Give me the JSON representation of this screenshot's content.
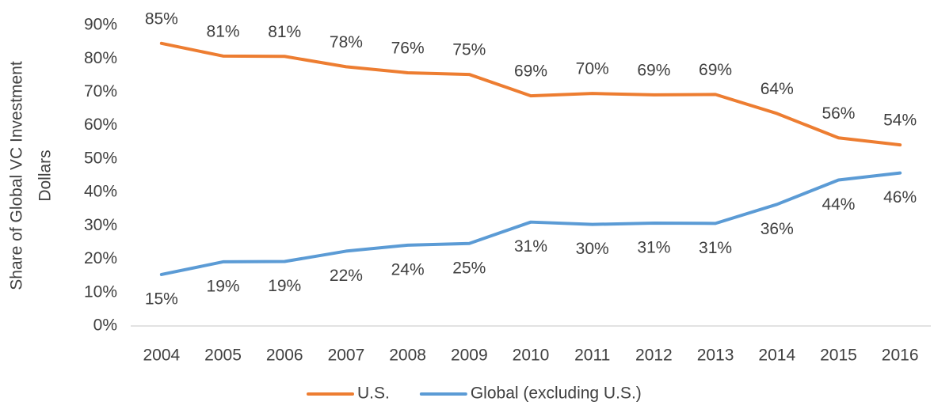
{
  "chart_data": {
    "type": "line",
    "ylabel": [
      "Share of Global VC Investment",
      "Dollars"
    ],
    "categories": [
      "2004",
      "2005",
      "2006",
      "2007",
      "2008",
      "2009",
      "2010",
      "2011",
      "2012",
      "2013",
      "2014",
      "2015",
      "2016"
    ],
    "series": [
      {
        "name": "U.S.",
        "color": "#ed7d31",
        "values": [
          84.6,
          80.8,
          80.7,
          77.6,
          75.8,
          75.3,
          68.9,
          69.6,
          69.2,
          69.3,
          63.6,
          56.3,
          54.2
        ],
        "value_labels": [
          "85%",
          "81%",
          "81%",
          "78%",
          "76%",
          "75%",
          "69%",
          "70%",
          "69%",
          "69%",
          "64%",
          "56%",
          "54%"
        ]
      },
      {
        "name": "Global (excluding U.S.)",
        "color": "#5b9bd5",
        "values": [
          15.4,
          19.2,
          19.3,
          22.4,
          24.2,
          24.7,
          31.1,
          30.4,
          30.8,
          30.7,
          36.4,
          43.7,
          45.8
        ],
        "value_labels": [
          "15%",
          "19%",
          "19%",
          "22%",
          "24%",
          "25%",
          "31%",
          "30%",
          "31%",
          "31%",
          "36%",
          "44%",
          "46%"
        ]
      }
    ],
    "ylim": [
      0,
      90
    ],
    "yticks": [
      {
        "value": 0,
        "label": "0%"
      },
      {
        "value": 10,
        "label": "10%"
      },
      {
        "value": 20,
        "label": "20%"
      },
      {
        "value": 30,
        "label": "30%"
      },
      {
        "value": 40,
        "label": "40%"
      },
      {
        "value": 50,
        "label": "50%"
      },
      {
        "value": 60,
        "label": "60%"
      },
      {
        "value": 70,
        "label": "70%"
      },
      {
        "value": 80,
        "label": "80%"
      },
      {
        "value": 90,
        "label": "90%"
      }
    ],
    "grid": false,
    "legend": "bottom"
  }
}
